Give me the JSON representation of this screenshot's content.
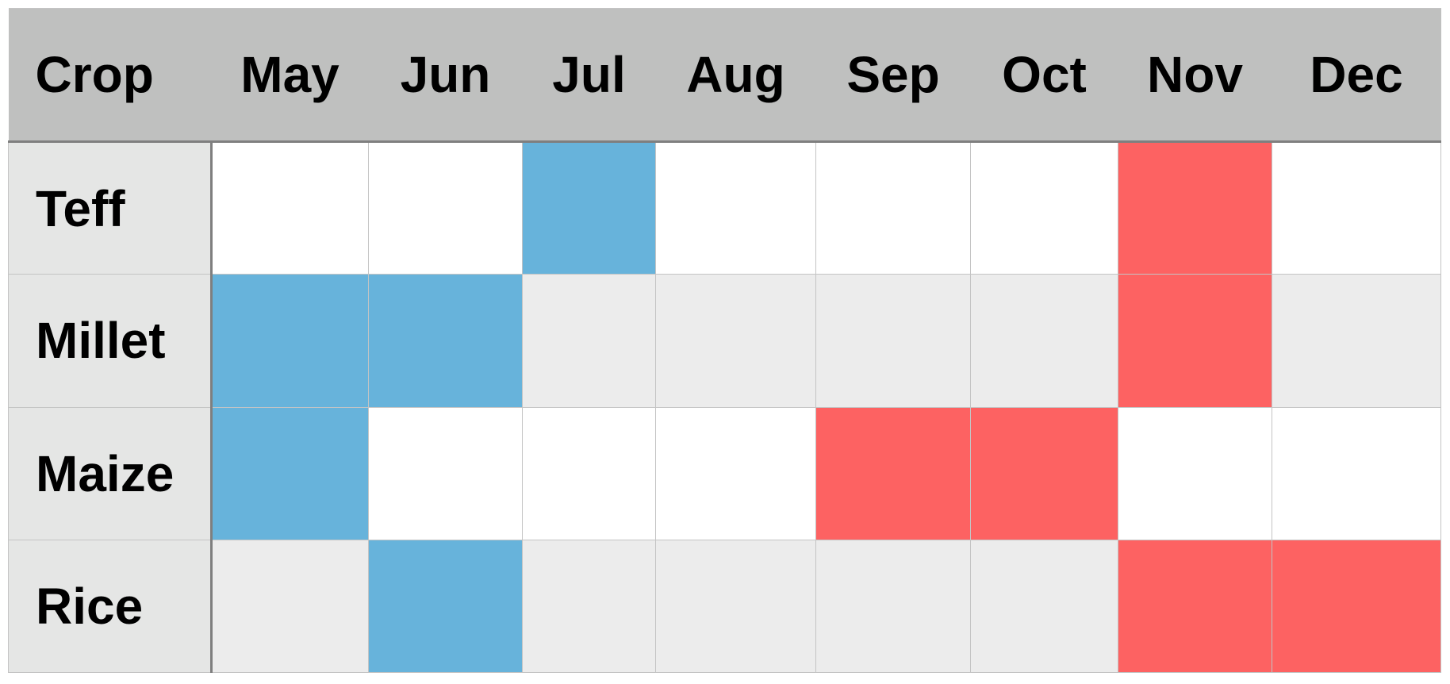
{
  "table": {
    "header_first": "Crop",
    "months": [
      "May",
      "Jun",
      "Jul",
      "Aug",
      "Sep",
      "Oct",
      "Nov",
      "Dec"
    ],
    "rows": [
      {
        "crop": "Teff",
        "cells": [
          "",
          "",
          "plant",
          "",
          "",
          "",
          "harvest",
          ""
        ]
      },
      {
        "crop": "Millet",
        "cells": [
          "plant",
          "plant",
          "",
          "",
          "",
          "",
          "harvest",
          ""
        ]
      },
      {
        "crop": "Maize",
        "cells": [
          "plant",
          "",
          "",
          "",
          "harvest",
          "harvest",
          "",
          ""
        ]
      },
      {
        "crop": "Rice",
        "cells": [
          "",
          "plant",
          "",
          "",
          "",
          "",
          "harvest",
          "harvest"
        ]
      }
    ]
  },
  "colors": {
    "plant": "#67b3db",
    "harvest": "#fd6262",
    "header_bg": "#bfc0bf",
    "crop_col_bg": "#e5e6e5",
    "alt_row_bg": "#ececec"
  }
}
